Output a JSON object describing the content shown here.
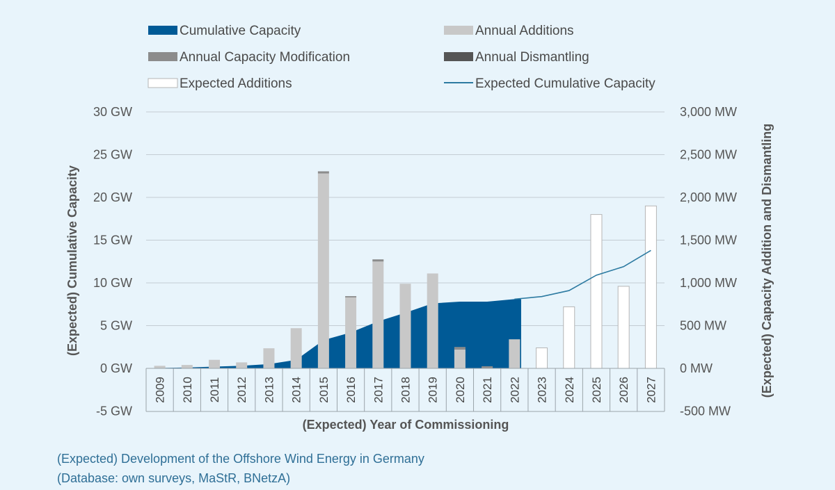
{
  "chart_data": {
    "type": "bar",
    "categories": [
      "2009",
      "2010",
      "2011",
      "2012",
      "2013",
      "2014",
      "2015",
      "2016",
      "2017",
      "2018",
      "2019",
      "2020",
      "2021",
      "2022",
      "2023",
      "2024",
      "2025",
      "2026",
      "2027"
    ],
    "left_axis": {
      "title": "(Expected) Cumulative Capacity",
      "ylim": [
        -5,
        30
      ],
      "ticks": [
        "-5 GW",
        "0 GW",
        "5 GW",
        "10 GW",
        "15 GW",
        "20 GW",
        "25 GW",
        "30 GW"
      ]
    },
    "right_axis": {
      "title": "(Expected) Capacity Addition and Dismantling",
      "ylim": [
        -500,
        3000
      ],
      "ticks": [
        "-500 MW",
        "0 MW",
        "500 MW",
        "1,000 MW",
        "1,500 MW",
        "2,000 MW",
        "2,500 MW",
        "3,000 MW"
      ]
    },
    "xlabel": "(Expected) Year of Commissioning",
    "grid": true,
    "legend_position": "top",
    "series": [
      {
        "name": "Cumulative Capacity",
        "type": "area",
        "axis": "left",
        "color": "#005a96",
        "values": [
          0.05,
          0.1,
          0.2,
          0.3,
          0.5,
          1.0,
          3.3,
          4.2,
          5.5,
          6.5,
          7.6,
          7.8,
          7.8,
          8.1,
          null,
          null,
          null,
          null,
          null
        ]
      },
      {
        "name": "Annual Additions",
        "type": "bar",
        "axis": "right",
        "color": "#c8c8c8",
        "values": [
          30,
          40,
          100,
          70,
          235,
          470,
          2280,
          830,
          1250,
          990,
          1110,
          220,
          0,
          340,
          null,
          null,
          null,
          null,
          null
        ]
      },
      {
        "name": "Annual Capacity Modification",
        "type": "bar",
        "axis": "right",
        "color": "#8c8c8c",
        "values": [
          0,
          0,
          0,
          0,
          0,
          0,
          25,
          15,
          25,
          0,
          0,
          30,
          25,
          0,
          null,
          null,
          null,
          null,
          null
        ]
      },
      {
        "name": "Annual Dismantling",
        "type": "bar",
        "axis": "right",
        "color": "#555555",
        "values": [
          0,
          0,
          0,
          0,
          0,
          0,
          0,
          0,
          0,
          0,
          0,
          0,
          0,
          0,
          null,
          null,
          null,
          null,
          null
        ]
      },
      {
        "name": "Expected Additions",
        "type": "bar",
        "axis": "right",
        "color": "#ffffff",
        "values": [
          null,
          null,
          null,
          null,
          null,
          null,
          null,
          null,
          null,
          null,
          null,
          null,
          null,
          null,
          240,
          720,
          1800,
          960,
          1900
        ]
      },
      {
        "name": "Expected Cumulative Capacity",
        "type": "line",
        "axis": "left",
        "color": "#2c7aa1",
        "values": [
          null,
          null,
          null,
          null,
          null,
          null,
          null,
          null,
          null,
          null,
          null,
          null,
          null,
          8.1,
          8.4,
          9.1,
          10.9,
          11.9,
          13.8
        ]
      }
    ]
  },
  "caption": {
    "line1": "(Expected) Development of the Offshore Wind Energy in Germany",
    "line2": "(Database: own surveys, MaStR, BNetzA)"
  }
}
